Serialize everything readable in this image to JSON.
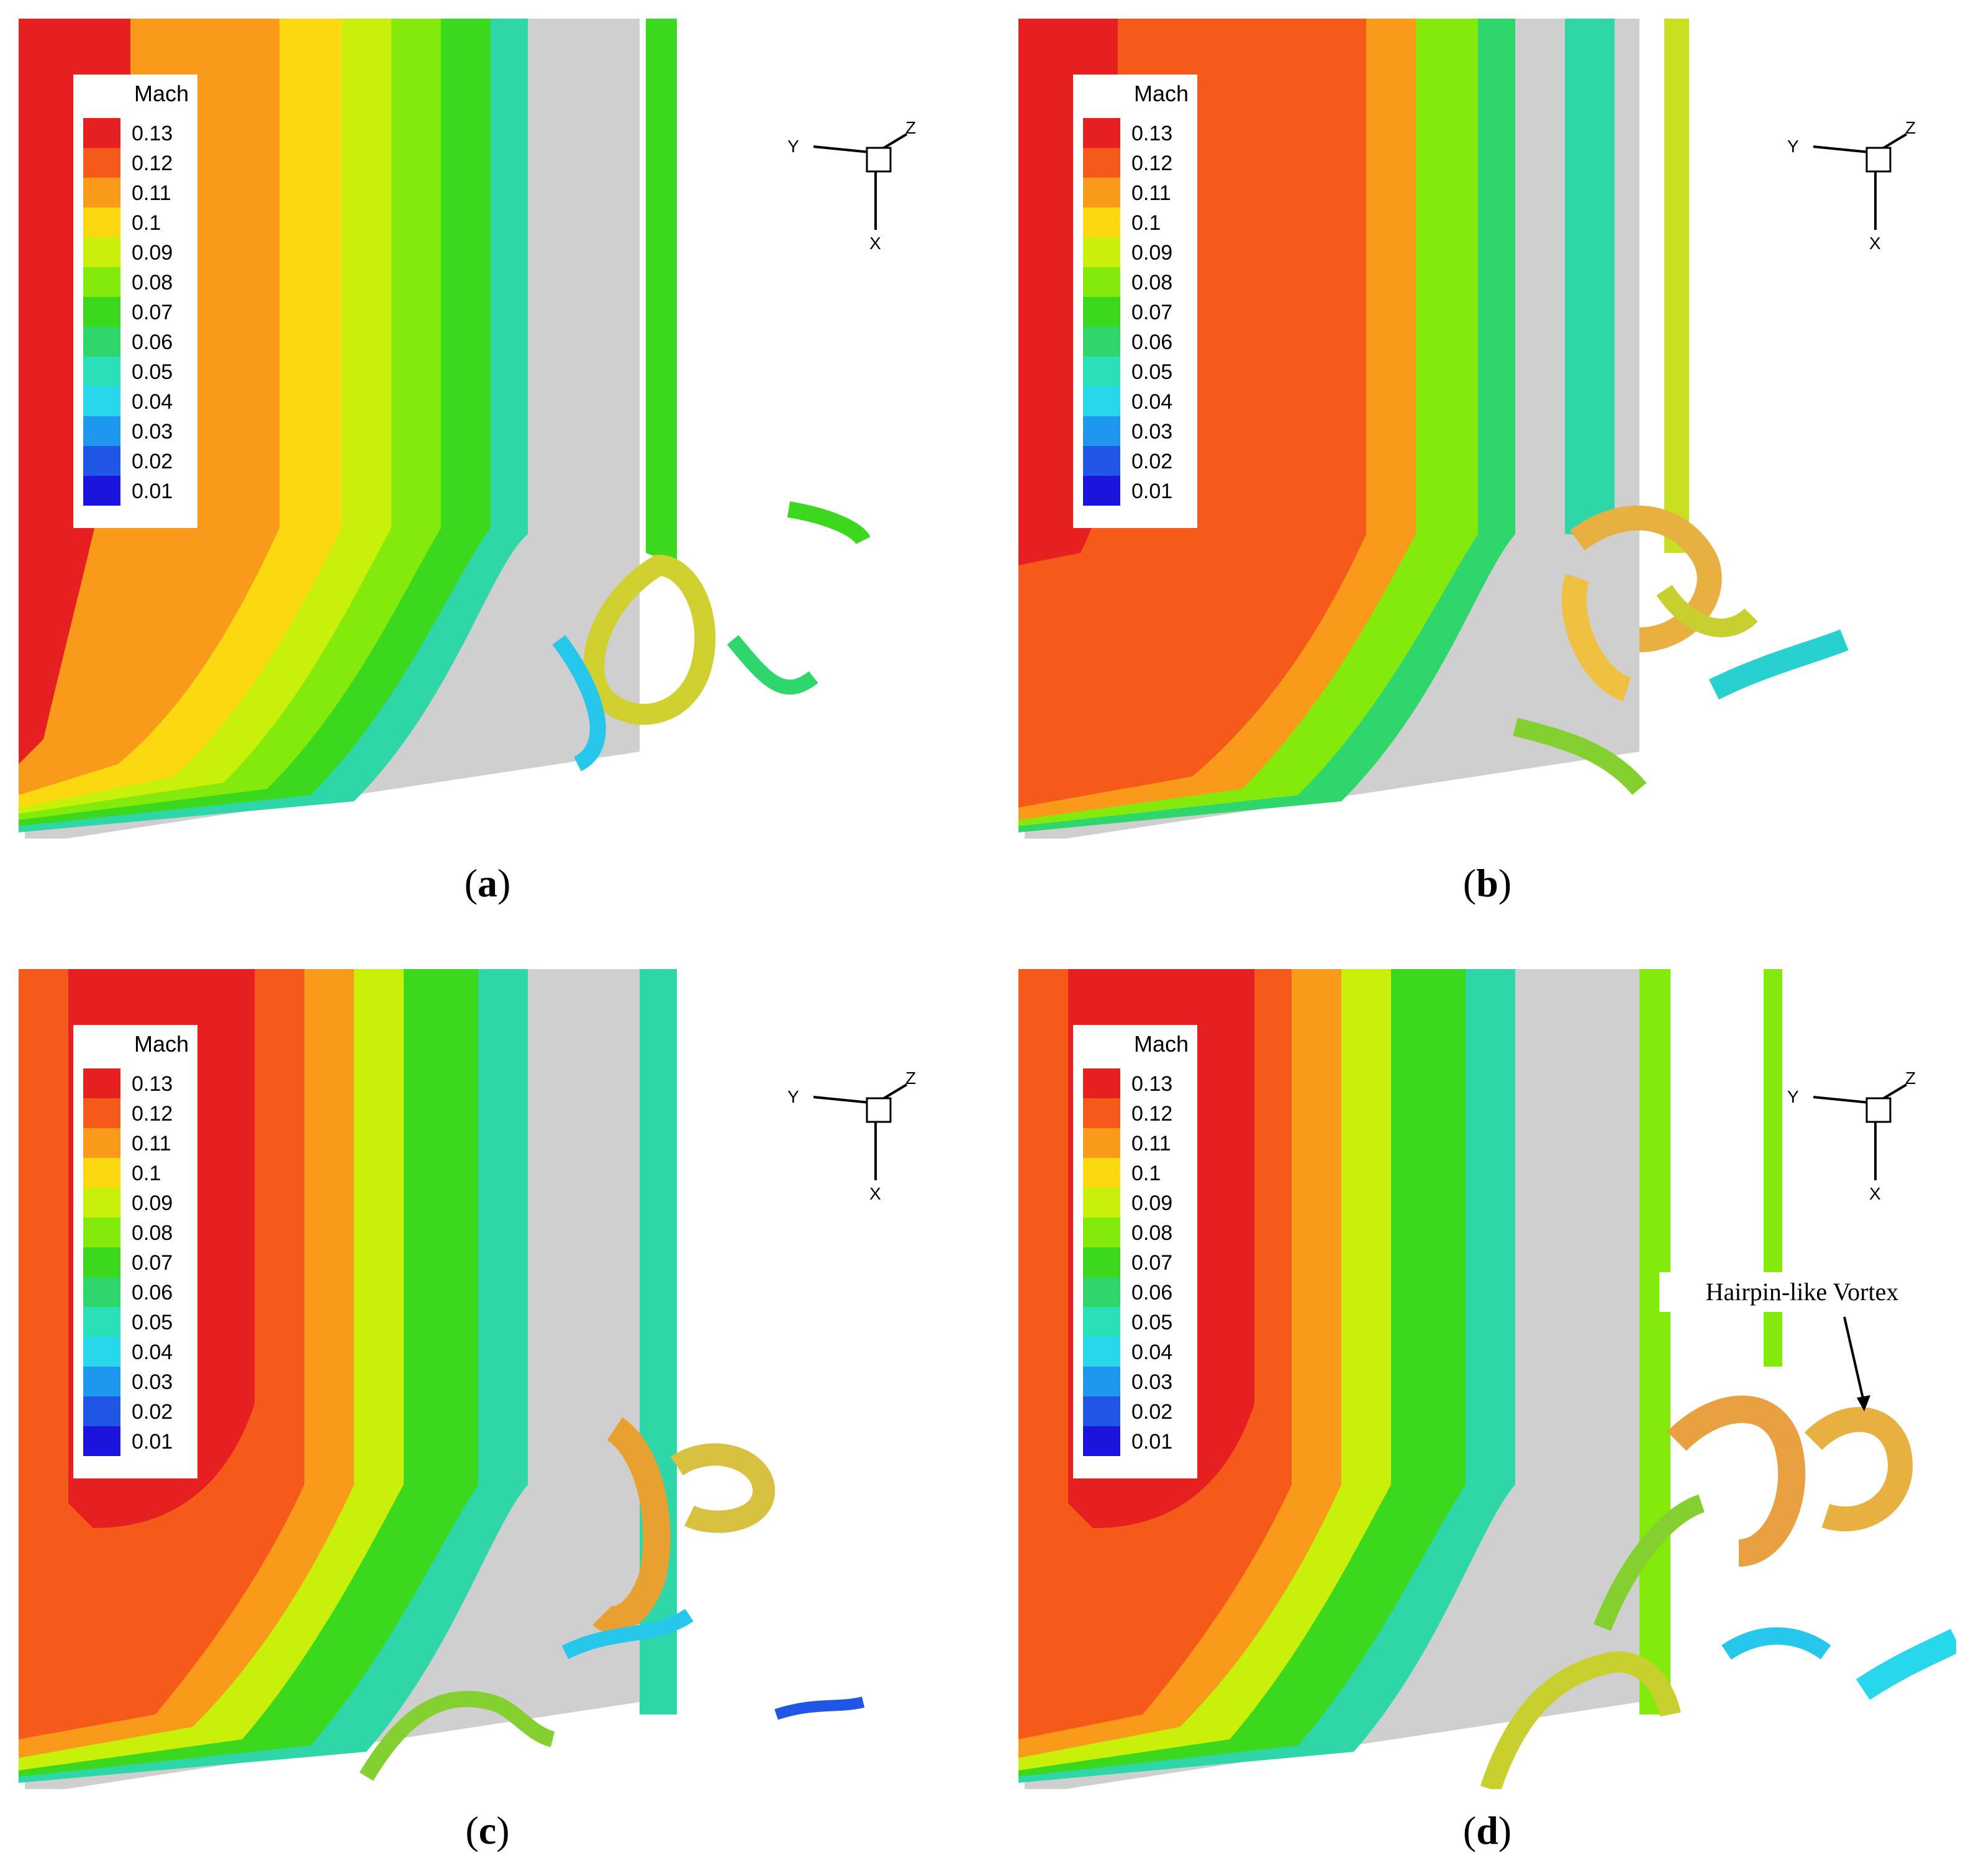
{
  "legend": {
    "title": "Mach",
    "levels": [
      "0.13",
      "0.12",
      "0.11",
      "0.1",
      "0.09",
      "0.08",
      "0.07",
      "0.06",
      "0.05",
      "0.04",
      "0.03",
      "0.02",
      "0.01"
    ],
    "colors": [
      "#e62020",
      "#f55a1a",
      "#f99a1a",
      "#fbd80f",
      "#c8f00a",
      "#84ea0c",
      "#3cd81e",
      "#2fd66c",
      "#29e0b8",
      "#27d7ec",
      "#1e98ee",
      "#2056e6",
      "#1a14dc"
    ]
  },
  "axis": {
    "y": "Y",
    "z": "Z",
    "x": "X"
  },
  "panels": [
    {
      "letter": "a"
    },
    {
      "letter": "b"
    },
    {
      "letter": "c"
    },
    {
      "letter": "d",
      "annotation": "Hairpin-like Vortex"
    }
  ]
}
